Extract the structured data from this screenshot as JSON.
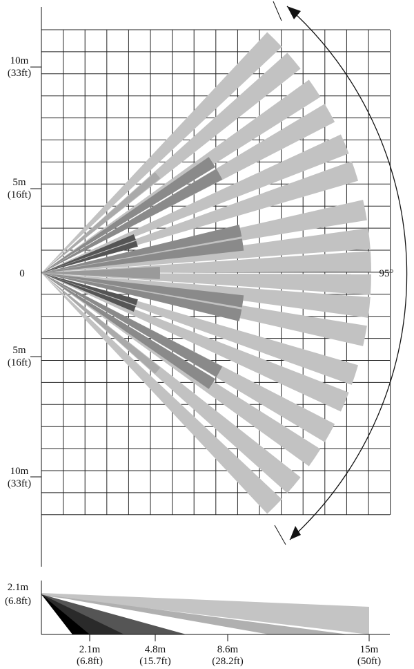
{
  "top_view": {
    "distance_labels": [
      {
        "metric": "10m",
        "imperial": "(33ft)"
      },
      {
        "metric": "5m",
        "imperial": "(16ft)"
      },
      {
        "metric": "0"
      },
      {
        "metric": "5m",
        "imperial": "(16ft)"
      },
      {
        "metric": "10m",
        "imperial": "(33ft)"
      }
    ],
    "angle_label": "95°"
  },
  "side_view": {
    "height_label": {
      "metric": "2.1m",
      "imperial": "(6.8ft)"
    },
    "distance_labels": [
      {
        "metric": "2.1m",
        "imperial": "(6.8ft)"
      },
      {
        "metric": "4.8m",
        "imperial": "(15.7ft)"
      },
      {
        "metric": "8.6m",
        "imperial": "(28.2ft)"
      },
      {
        "metric": "15m",
        "imperial": "(50ft)"
      }
    ]
  }
}
